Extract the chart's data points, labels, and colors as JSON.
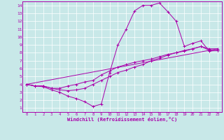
{
  "bg_color": "#c8e8e8",
  "line_color": "#aa00aa",
  "xlabel": "Windchill (Refroidissement éolien,°C)",
  "xlim": [
    -0.5,
    23.5
  ],
  "ylim": [
    0.5,
    14.5
  ],
  "xticks": [
    0,
    1,
    2,
    3,
    4,
    5,
    6,
    7,
    8,
    9,
    10,
    11,
    12,
    13,
    14,
    15,
    16,
    17,
    18,
    19,
    20,
    21,
    22,
    23
  ],
  "yticks": [
    1,
    2,
    3,
    4,
    5,
    6,
    7,
    8,
    9,
    10,
    11,
    12,
    13,
    14
  ],
  "curve1_x": [
    0,
    1,
    2,
    3,
    4,
    5,
    6,
    7,
    8,
    9,
    10,
    11,
    12,
    13,
    14,
    15,
    16,
    17,
    18,
    19,
    20,
    21,
    22,
    23
  ],
  "curve1_y": [
    4.0,
    3.8,
    3.7,
    3.3,
    3.0,
    2.5,
    2.2,
    1.8,
    1.2,
    1.5,
    5.5,
    9.0,
    11.0,
    13.3,
    14.0,
    14.0,
    14.3,
    13.2,
    12.0,
    8.8,
    9.2,
    9.5,
    8.2,
    8.3
  ],
  "curve2_x": [
    0,
    1,
    2,
    3,
    4,
    5,
    6,
    7,
    8,
    9,
    10,
    11,
    12,
    13,
    14,
    15,
    16,
    17,
    18,
    19,
    20,
    21,
    22,
    23
  ],
  "curve2_y": [
    4.0,
    3.8,
    3.8,
    3.5,
    3.5,
    3.8,
    4.0,
    4.3,
    4.5,
    5.2,
    5.7,
    6.2,
    6.5,
    6.8,
    7.0,
    7.2,
    7.5,
    7.8,
    8.0,
    8.2,
    8.5,
    8.8,
    8.5,
    8.5
  ],
  "curve3_x": [
    0,
    1,
    2,
    3,
    4,
    5,
    6,
    7,
    8,
    9,
    10,
    11,
    12,
    13,
    14,
    15,
    16,
    17,
    18,
    19,
    20,
    21,
    22,
    23
  ],
  "curve3_y": [
    4.0,
    3.8,
    3.8,
    3.5,
    3.3,
    3.2,
    3.3,
    3.5,
    4.0,
    4.5,
    5.0,
    5.5,
    5.8,
    6.2,
    6.5,
    7.0,
    7.3,
    7.7,
    8.0,
    8.3,
    8.5,
    8.8,
    8.3,
    8.3
  ],
  "curve4_x": [
    0,
    23
  ],
  "curve4_y": [
    4.0,
    8.5
  ],
  "marker": "+"
}
